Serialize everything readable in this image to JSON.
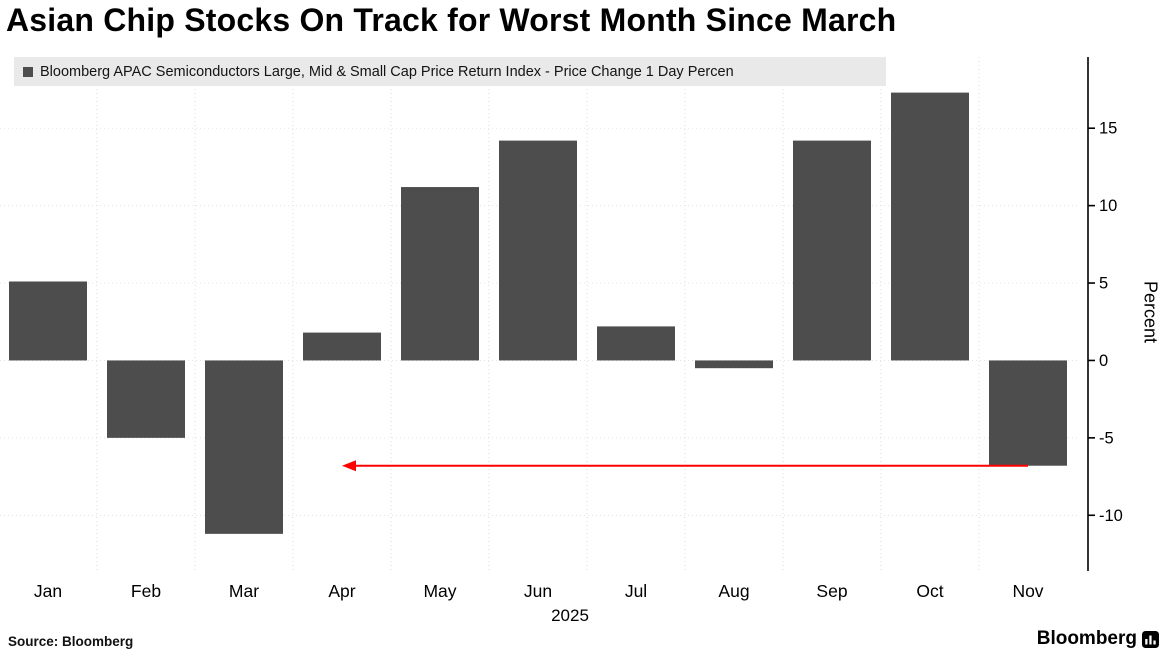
{
  "title": "Asian Chip Stocks On Track for Worst Month Since March",
  "legend": {
    "label": "Bloomberg APAC Semiconductors Large, Mid & Small Cap Price Return Index - Price Change 1 Day Percen",
    "marker_color": "#4d4d4d"
  },
  "chart_data": {
    "type": "bar",
    "title": "Asian Chip Stocks On Track for Worst Month Since March",
    "categories": [
      "Jan",
      "Feb",
      "Mar",
      "Apr",
      "May",
      "Jun",
      "Jul",
      "Aug",
      "Sep",
      "Oct",
      "Nov"
    ],
    "values": [
      5.1,
      -5.0,
      -11.2,
      1.8,
      11.2,
      14.2,
      2.2,
      -0.5,
      14.2,
      17.3,
      -6.8
    ],
    "xlabel": "2025",
    "ylabel": "Percent",
    "ylim": [
      -13.6,
      19.6
    ],
    "yticks": [
      -10,
      -5,
      0,
      5,
      10,
      15
    ],
    "bar_color": "#4d4d4d",
    "grid": true,
    "legend_position": "top-left",
    "annotation": {
      "type": "arrow",
      "y": -6.8,
      "x_from": "Nov",
      "x_to": "Apr",
      "color": "#ff0000"
    }
  },
  "footer": {
    "source": "Source: Bloomberg",
    "brand": "Bloomberg"
  }
}
